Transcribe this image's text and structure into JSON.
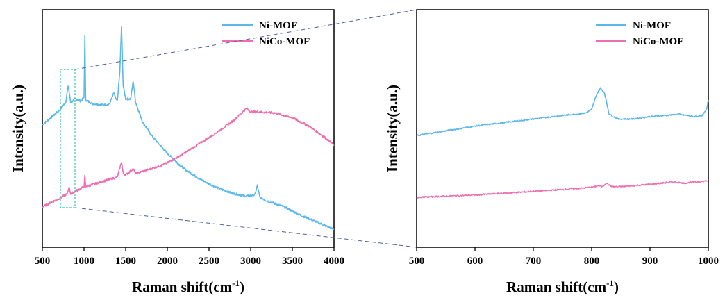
{
  "figure": {
    "left_panel": {
      "xlabel": "Raman shift(cm",
      "xlabel_sup": "-1",
      "xlabel_tail": ")",
      "ylabel": "Intensity(a.u.)",
      "legend": [
        "Ni-MOF",
        "NiCo-MOF"
      ]
    },
    "right_panel": {
      "xlabel": "Raman shift(cm",
      "xlabel_sup": "-1",
      "xlabel_tail": ")",
      "ylabel": "Intensity(a.u.)",
      "legend": [
        "Ni-MOF",
        "NiCo-MOF"
      ]
    },
    "colors": {
      "ni_mof": "#5bb8ea",
      "nico_mof": "#ee6eb0",
      "zoom_box": "#3cc4b4",
      "zoom_lines": "#4a5fa0"
    }
  },
  "chart_data": [
    {
      "type": "line",
      "xlabel": "Raman shift(cm-1)",
      "ylabel": "Intensity(a.u.)",
      "xlim": [
        500,
        4000
      ],
      "ylim": [
        0,
        100
      ],
      "xticks": [
        500,
        1000,
        1500,
        2000,
        2500,
        3000,
        3500,
        4000
      ],
      "yticks_shown": false,
      "legend_position": "top-right",
      "series": [
        {
          "name": "Ni-MOF",
          "color": "#5bb8ea",
          "x": [
            500,
            700,
            780,
            810,
            840,
            900,
            960,
            1000,
            1010,
            1020,
            1100,
            1200,
            1300,
            1360,
            1380,
            1400,
            1430,
            1450,
            1470,
            1500,
            1560,
            1590,
            1620,
            1700,
            1800,
            2000,
            2200,
            2400,
            2600,
            2800,
            2950,
            3050,
            3080,
            3110,
            3200,
            3400,
            3600,
            3800,
            4000
          ],
          "y": [
            51.5,
            57.5,
            61,
            68,
            61,
            62.5,
            61.5,
            63,
            89,
            62,
            60.5,
            60,
            60,
            65,
            62.5,
            61.5,
            74,
            93,
            68,
            62.5,
            62.5,
            70,
            61,
            53,
            47.5,
            39.5,
            33,
            28.5,
            25,
            22.5,
            21.5,
            22,
            26,
            21,
            19.5,
            17,
            13.5,
            10.5,
            7.5
          ]
        },
        {
          "name": "NiCo-MOF",
          "color": "#ee6eb0",
          "x": [
            500,
            700,
            800,
            820,
            840,
            1000,
            1010,
            1020,
            1200,
            1400,
            1450,
            1470,
            1500,
            1590,
            1620,
            1800,
            2000,
            2200,
            2400,
            2600,
            2800,
            2950,
            3000,
            3100,
            3300,
            3500,
            3700,
            3900,
            4000
          ],
          "y": [
            17,
            20.5,
            22.5,
            25.5,
            22.5,
            25.5,
            30,
            25.5,
            27.5,
            29.5,
            36,
            31,
            30.5,
            33,
            31,
            33,
            35.5,
            39.5,
            44,
            48.5,
            53.5,
            58.5,
            57,
            57,
            56.5,
            54.5,
            51,
            46,
            43
          ]
        }
      ]
    },
    {
      "type": "line",
      "xlabel": "Raman shift(cm-1)",
      "ylabel": "Intensity(a.u.)",
      "xlim": [
        500,
        1000
      ],
      "ylim": [
        0,
        100
      ],
      "xticks": [
        500,
        600,
        700,
        800,
        900,
        1000
      ],
      "yticks_shown": false,
      "legend_position": "top-right",
      "series": [
        {
          "name": "Ni-MOF",
          "color": "#5bb8ea",
          "x": [
            500,
            550,
            600,
            650,
            700,
            750,
            790,
            800,
            808,
            815,
            822,
            830,
            845,
            870,
            900,
            950,
            975,
            990,
            997,
            1000
          ],
          "y": [
            47,
            49,
            51,
            52.5,
            54,
            55.5,
            56.5,
            58,
            64,
            67,
            65,
            56,
            54,
            54,
            55,
            56,
            55,
            55.5,
            58,
            62
          ]
        },
        {
          "name": "NiCo-MOF",
          "color": "#ee6eb0",
          "x": [
            500,
            600,
            700,
            790,
            805,
            812,
            818,
            825,
            835,
            850,
            900,
            940,
            960,
            1000
          ],
          "y": [
            21,
            22,
            23.5,
            25,
            25.5,
            26,
            25.5,
            27,
            25.5,
            25.5,
            26.5,
            27.5,
            27,
            28
          ]
        }
      ]
    }
  ]
}
